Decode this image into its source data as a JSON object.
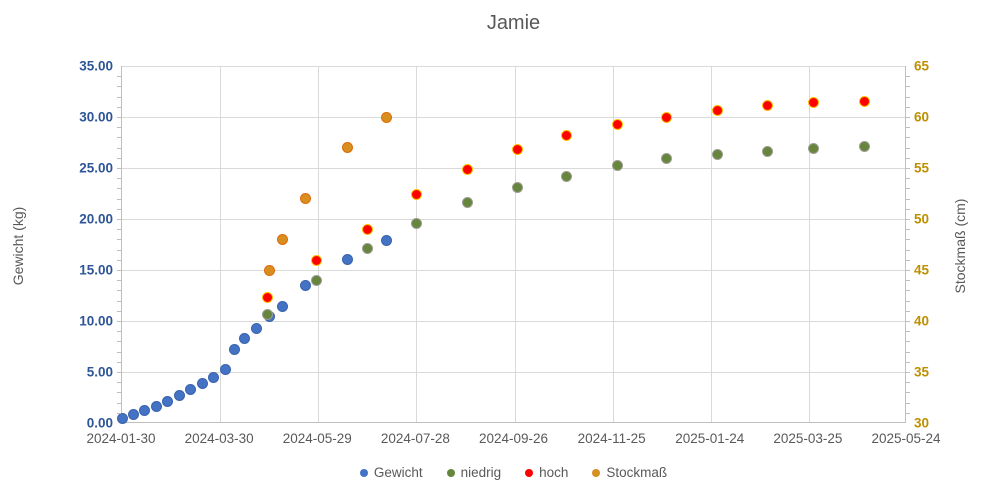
{
  "chart_data": {
    "type": "scatter",
    "title": "Jamie",
    "grid": true,
    "legend_position": "bottom",
    "left_axis": {
      "label": "Gewicht (kg)",
      "min": 0,
      "max": 35,
      "major_step": 5,
      "minor_step": 1,
      "tick_labels": [
        "35.00",
        "30.00",
        "25.00",
        "20.00",
        "15.00",
        "10.00",
        "5.00",
        "0.00"
      ],
      "color": "#2E5597"
    },
    "right_axis": {
      "label": "Stockmaß (cm)",
      "min": 30,
      "max": 65,
      "major_step": 5,
      "minor_step": 1,
      "tick_labels": [
        "65",
        "60",
        "55",
        "50",
        "45",
        "40",
        "35",
        "30"
      ],
      "color": "#BF8F00"
    },
    "x_axis": {
      "start": "2024-01-30",
      "end": "2025-05-24",
      "tick_labels": [
        "2024-01-30",
        "2024-03-30",
        "2024-05-29",
        "2024-07-28",
        "2024-09-26",
        "2024-11-25",
        "2025-01-24",
        "2025-03-25",
        "2025-05-24"
      ],
      "color": "#595959"
    },
    "series": [
      {
        "name": "Gewicht",
        "axis": "left",
        "fill": "#4472C4",
        "border": "#3A63AB",
        "points": [
          [
            "2024-01-30",
            0.4
          ],
          [
            "2024-02-06",
            0.8
          ],
          [
            "2024-02-13",
            1.2
          ],
          [
            "2024-02-20",
            1.6
          ],
          [
            "2024-02-27",
            2.1
          ],
          [
            "2024-03-05",
            2.7
          ],
          [
            "2024-03-12",
            3.3
          ],
          [
            "2024-03-19",
            3.9
          ],
          [
            "2024-03-26",
            4.5
          ],
          [
            "2024-04-02",
            5.2
          ],
          [
            "2024-04-08",
            7.2
          ],
          [
            "2024-04-14",
            8.3
          ],
          [
            "2024-04-21",
            9.3
          ],
          [
            "2024-04-29",
            10.4
          ],
          [
            "2024-05-07",
            11.4
          ],
          [
            "2024-05-21",
            13.5
          ],
          [
            "2024-06-16",
            16.0
          ],
          [
            "2024-07-10",
            17.9
          ]
        ]
      },
      {
        "name": "niedrig",
        "axis": "left",
        "fill": "#66853D",
        "border": "#9C9C94",
        "points": [
          [
            "2024-04-28",
            10.6
          ],
          [
            "2024-05-28",
            14.0
          ],
          [
            "2024-06-28",
            17.1
          ],
          [
            "2024-07-28",
            19.6
          ],
          [
            "2024-08-28",
            21.6
          ],
          [
            "2024-09-28",
            23.1
          ],
          [
            "2024-10-28",
            24.2
          ],
          [
            "2024-11-28",
            25.2
          ],
          [
            "2024-12-28",
            25.9
          ],
          [
            "2025-01-28",
            26.3
          ],
          [
            "2025-02-28",
            26.6
          ],
          [
            "2025-03-28",
            26.9
          ],
          [
            "2025-04-28",
            27.1
          ]
        ]
      },
      {
        "name": "hoch",
        "axis": "left",
        "fill": "#FF0000",
        "border": "#FFC000",
        "points": [
          [
            "2024-04-28",
            12.3
          ],
          [
            "2024-05-28",
            15.9
          ],
          [
            "2024-06-28",
            19.0
          ],
          [
            "2024-07-28",
            22.4
          ],
          [
            "2024-08-28",
            24.9
          ],
          [
            "2024-09-28",
            26.8
          ],
          [
            "2024-10-28",
            28.2
          ],
          [
            "2024-11-28",
            29.3
          ],
          [
            "2024-12-28",
            30.0
          ],
          [
            "2025-01-28",
            30.6
          ],
          [
            "2025-02-28",
            31.1
          ],
          [
            "2025-03-28",
            31.4
          ],
          [
            "2025-04-28",
            31.5
          ]
        ]
      },
      {
        "name": "Stockmaß",
        "axis": "right",
        "fill": "#D78F1F",
        "border": "#E26B0A",
        "points": [
          [
            "2024-04-29",
            45
          ],
          [
            "2024-05-07",
            48
          ],
          [
            "2024-05-21",
            52
          ],
          [
            "2024-06-16",
            57
          ],
          [
            "2024-07-10",
            60
          ]
        ]
      }
    ]
  }
}
